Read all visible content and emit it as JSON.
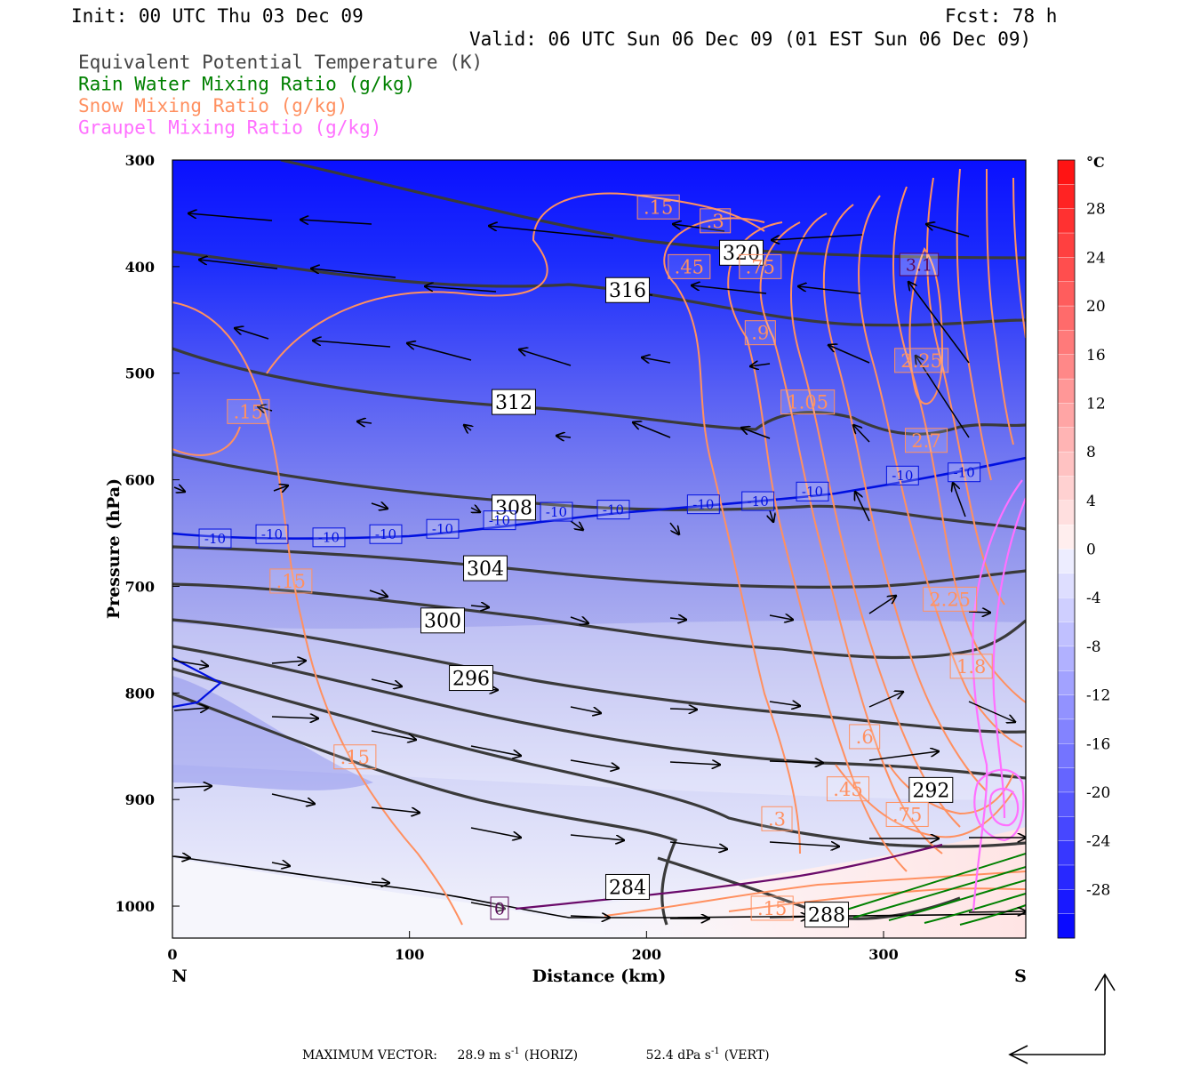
{
  "header": {
    "init": "Init: 00 UTC Thu 03 Dec 09",
    "fcst": "Fcst:   78 h",
    "valid": "Valid: 06 UTC Sun 06 Dec 09 (01 EST Sun 06 Dec 09)"
  },
  "legend": [
    {
      "text": "Equivalent Potential Temperature (K)",
      "color": "#444444"
    },
    {
      "text": "Rain Water Mixing Ratio (g/kg)",
      "color": "#008000"
    },
    {
      "text": "Snow Mixing Ratio (g/kg)",
      "color": "#ff9060"
    },
    {
      "text": "Graupel Mixing Ratio (g/kg)",
      "color": "#ff70ff"
    }
  ],
  "chart_data": {
    "type": "cross-section",
    "xlabel": "Distance (km)",
    "ylabel": "Pressure (hPa)",
    "xlim": [
      0,
      360
    ],
    "ylim": [
      1030,
      300
    ],
    "x_ticks": [
      "0",
      "100",
      "200",
      "300"
    ],
    "y_ticks": [
      "300",
      "400",
      "500",
      "600",
      "700",
      "800",
      "900",
      "1000"
    ],
    "endpoints": {
      "left": "N",
      "right": "S"
    },
    "colorbar": {
      "unit": "°C",
      "labels": [
        "28",
        "24",
        "20",
        "16",
        "12",
        "8",
        "4",
        "0",
        "-4",
        "-8",
        "-12",
        "-16",
        "-20",
        "-24",
        "-28"
      ]
    },
    "theta_e_labels": [
      {
        "text": "320",
        "x": 240,
        "p": 387
      },
      {
        "text": "316",
        "x": 192,
        "p": 422
      },
      {
        "text": "312",
        "x": 144,
        "p": 527
      },
      {
        "text": "308",
        "x": 144,
        "p": 626
      },
      {
        "text": "304",
        "x": 132,
        "p": 683
      },
      {
        "text": "300",
        "x": 114,
        "p": 732
      },
      {
        "text": "296",
        "x": 126,
        "p": 786
      },
      {
        "text": "292",
        "x": 320,
        "p": 891
      },
      {
        "text": "288",
        "x": 276,
        "p": 1008
      },
      {
        "text": "284",
        "x": 192,
        "p": 982
      }
    ],
    "snow_labels": [
      {
        "text": ".15",
        "x": 205,
        "p": 344
      },
      {
        "text": ".3",
        "x": 229,
        "p": 357
      },
      {
        "text": ".45",
        "x": 218,
        "p": 400
      },
      {
        "text": ".75",
        "x": 248,
        "p": 400
      },
      {
        "text": ".9",
        "x": 248,
        "p": 462
      },
      {
        "text": "1.05",
        "x": 268,
        "p": 527
      },
      {
        "text": "2.25",
        "x": 316,
        "p": 488
      },
      {
        "text": "2.7",
        "x": 318,
        "p": 563
      },
      {
        "text": "2.25",
        "x": 328,
        "p": 712
      },
      {
        "text": "1.8",
        "x": 337,
        "p": 775
      },
      {
        "text": ".6",
        "x": 292,
        "p": 841
      },
      {
        "text": ".45",
        "x": 285,
        "p": 890
      },
      {
        "text": ".75",
        "x": 310,
        "p": 914
      },
      {
        "text": ".3",
        "x": 255,
        "p": 918
      },
      {
        "text": ".15",
        "x": 253,
        "p": 1002
      },
      {
        "text": ".15",
        "x": 32,
        "p": 536
      },
      {
        "text": ".15",
        "x": 50,
        "p": 695
      },
      {
        "text": ".15",
        "x": 77,
        "p": 860
      }
    ],
    "isotherm_labels": [
      {
        "text": "-10",
        "x": 18,
        "p": 655
      },
      {
        "text": "-10",
        "x": 42,
        "p": 651
      },
      {
        "text": "-10",
        "x": 66,
        "p": 654
      },
      {
        "text": "-10",
        "x": 90,
        "p": 651
      },
      {
        "text": "-10",
        "x": 114,
        "p": 646
      },
      {
        "text": "-10",
        "x": 138,
        "p": 638
      },
      {
        "text": "-10",
        "x": 162,
        "p": 630
      },
      {
        "text": "-10",
        "x": 186,
        "p": 628
      },
      {
        "text": "-10",
        "x": 224,
        "p": 623
      },
      {
        "text": "-10",
        "x": 247,
        "p": 620
      },
      {
        "text": "-10",
        "x": 270,
        "p": 611
      },
      {
        "text": "-10",
        "x": 308,
        "p": 596
      },
      {
        "text": "-10",
        "x": 334,
        "p": 593
      }
    ],
    "other_labels": [
      {
        "text": "3.1",
        "x": 315,
        "p": 398
      },
      {
        "text": "0",
        "x": 138,
        "p": 1002
      }
    ]
  },
  "footer": {
    "max_vector_label": "MAXIMUM VECTOR:",
    "horiz_value": "28.9 m s",
    "horiz_exp": "-1",
    "horiz_tag": "(HORIZ)",
    "vert_value": "52.4 dPa s",
    "vert_exp": "-1",
    "vert_tag": "(VERT)"
  }
}
